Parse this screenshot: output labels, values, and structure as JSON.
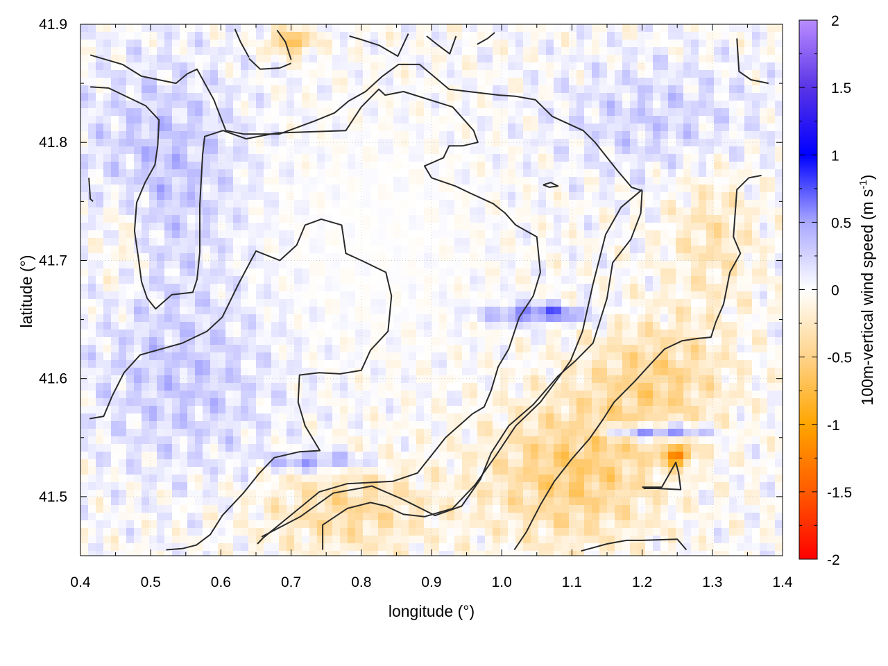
{
  "chart_data": {
    "type": "heatmap",
    "title": "",
    "xlabel": "longitude (°)",
    "ylabel": "latitude (°)",
    "colorbar_label": "100m-vertical wind speed (m s",
    "colorbar_label_sup": "-1",
    "colorbar_label_close": ")",
    "xlim": [
      0.4,
      1.4
    ],
    "ylim": [
      41.45,
      41.9
    ],
    "x_ticks": [
      "0.4",
      "0.5",
      "0.6",
      "0.7",
      "0.8",
      "0.9",
      "1.0",
      "1.1",
      "1.2",
      "1.3",
      "1.4"
    ],
    "x_tick_values": [
      0.4,
      0.5,
      0.6,
      0.7,
      0.8,
      0.9,
      1.0,
      1.1,
      1.2,
      1.3,
      1.4
    ],
    "y_ticks": [
      "41.5",
      "41.6",
      "41.7",
      "41.8",
      "41.9"
    ],
    "y_tick_values": [
      41.5,
      41.6,
      41.7,
      41.8,
      41.9
    ],
    "colorbar_ticks": [
      "-2",
      "-1.5",
      "-1",
      "-0.5",
      "0",
      "0.5",
      "1",
      "1.5",
      "2"
    ],
    "colorbar_tick_values": [
      -2,
      -1.5,
      -1,
      -0.5,
      0,
      0.5,
      1,
      1.5,
      2
    ],
    "color_range": [
      -2,
      2
    ],
    "colormap": [
      {
        "value": -2,
        "color": "#ff0000"
      },
      {
        "value": -1.5,
        "color": "#ff5a00"
      },
      {
        "value": -1,
        "color": "#ffa500"
      },
      {
        "value": -0.5,
        "color": "#ffd38a"
      },
      {
        "value": 0,
        "color": "#ffffff"
      },
      {
        "value": 0.5,
        "color": "#a8a8ff"
      },
      {
        "value": 1,
        "color": "#0000ff"
      },
      {
        "value": 1.5,
        "color": "#5a34e6"
      },
      {
        "value": 2,
        "color": "#b98cff"
      }
    ],
    "grid": true,
    "contour_color": "#2a2a2a",
    "contours": [
      [
        [
          0.414,
          41.874
        ],
        [
          0.46,
          41.866
        ],
        [
          0.487,
          41.856
        ],
        [
          0.536,
          41.85
        ],
        [
          0.552,
          41.858
        ],
        [
          0.566,
          41.862
        ],
        [
          0.59,
          41.836
        ],
        [
          0.607,
          41.81
        ],
        [
          0.633,
          41.807
        ],
        [
          0.683,
          41.807
        ],
        [
          0.733,
          41.818
        ],
        [
          0.762,
          41.825
        ],
        [
          0.782,
          41.835
        ],
        [
          0.806,
          41.843
        ],
        [
          0.83,
          41.856
        ],
        [
          0.853,
          41.866
        ],
        [
          0.883,
          41.866
        ],
        [
          0.925,
          41.845
        ],
        [
          0.996,
          41.84
        ],
        [
          1.02,
          41.839
        ],
        [
          1.048,
          41.836
        ],
        [
          1.072,
          41.822
        ],
        [
          1.116,
          41.81
        ],
        [
          1.133,
          41.8
        ],
        [
          1.165,
          41.776
        ],
        [
          1.185,
          41.762
        ],
        [
          1.2,
          41.759
        ],
        [
          1.198,
          41.74
        ],
        [
          1.184,
          41.718
        ],
        [
          1.158,
          41.698
        ],
        [
          1.15,
          41.668
        ],
        [
          1.14,
          41.649
        ],
        [
          1.13,
          41.63
        ],
        [
          1.105,
          41.615
        ],
        [
          1.08,
          41.602
        ],
        [
          1.045,
          41.578
        ],
        [
          1.01,
          41.56
        ],
        [
          0.985,
          41.537
        ],
        [
          0.97,
          41.515
        ],
        [
          0.943,
          41.492
        ],
        [
          0.905,
          41.484
        ],
        [
          0.858,
          41.498
        ],
        [
          0.815,
          41.509
        ],
        [
          0.76,
          41.503
        ],
        [
          0.713,
          41.483
        ],
        [
          0.658,
          41.466
        ]
      ],
      [
        [
          0.414,
          41.847
        ],
        [
          0.44,
          41.846
        ],
        [
          0.493,
          41.831
        ],
        [
          0.512,
          41.819
        ],
        [
          0.51,
          41.797
        ],
        [
          0.506,
          41.781
        ],
        [
          0.492,
          41.766
        ],
        [
          0.48,
          41.749
        ],
        [
          0.477,
          41.725
        ],
        [
          0.483,
          41.7
        ],
        [
          0.487,
          41.682
        ],
        [
          0.495,
          41.668
        ],
        [
          0.507,
          41.659
        ],
        [
          0.53,
          41.671
        ],
        [
          0.56,
          41.673
        ],
        [
          0.566,
          41.684
        ],
        [
          0.57,
          41.707
        ],
        [
          0.57,
          41.747
        ],
        [
          0.574,
          41.79
        ],
        [
          0.577,
          41.805
        ],
        [
          0.603,
          41.81
        ],
        [
          0.636,
          41.803
        ],
        [
          0.68,
          41.808
        ],
        [
          0.778,
          41.81
        ],
        [
          0.8,
          41.83
        ],
        [
          0.825,
          41.845
        ],
        [
          0.834,
          41.84
        ],
        [
          0.86,
          41.843
        ],
        [
          0.93,
          41.83
        ],
        [
          0.96,
          41.81
        ],
        [
          0.966,
          41.8
        ],
        [
          0.944,
          41.797
        ],
        [
          0.925,
          41.797
        ],
        [
          0.917,
          41.787
        ],
        [
          0.89,
          41.78
        ],
        [
          0.9,
          41.77
        ],
        [
          0.934,
          41.763
        ],
        [
          0.955,
          41.757
        ],
        [
          0.988,
          41.748
        ],
        [
          1.005,
          41.74
        ],
        [
          1.02,
          41.73
        ],
        [
          1.05,
          41.72
        ],
        [
          1.055,
          41.69
        ],
        [
          1.045,
          41.67
        ],
        [
          1.025,
          41.652
        ],
        [
          1.01,
          41.625
        ],
        [
          0.995,
          41.61
        ],
        [
          0.985,
          41.59
        ],
        [
          0.975,
          41.576
        ],
        [
          0.958,
          41.57
        ],
        [
          0.92,
          41.55
        ],
        [
          0.88,
          41.52
        ],
        [
          0.845,
          41.513
        ],
        [
          0.78,
          41.511
        ],
        [
          0.74,
          41.504
        ],
        [
          0.695,
          41.482
        ],
        [
          0.66,
          41.465
        ],
        [
          0.652,
          41.46
        ]
      ],
      [
        [
          0.413,
          41.566
        ],
        [
          0.433,
          41.568
        ],
        [
          0.445,
          41.585
        ],
        [
          0.462,
          41.605
        ],
        [
          0.485,
          41.62
        ],
        [
          0.545,
          41.63
        ],
        [
          0.58,
          41.64
        ],
        [
          0.602,
          41.652
        ],
        [
          0.625,
          41.68
        ],
        [
          0.65,
          41.708
        ],
        [
          0.684,
          41.7
        ],
        [
          0.708,
          41.713
        ],
        [
          0.72,
          41.73
        ],
        [
          0.743,
          41.735
        ],
        [
          0.772,
          41.73
        ],
        [
          0.778,
          41.706
        ],
        [
          0.8,
          41.7
        ],
        [
          0.835,
          41.69
        ],
        [
          0.843,
          41.67
        ],
        [
          0.838,
          41.64
        ],
        [
          0.813,
          41.624
        ],
        [
          0.8,
          41.607
        ],
        [
          0.77,
          41.604
        ],
        [
          0.74,
          41.605
        ],
        [
          0.712,
          41.603
        ],
        [
          0.71,
          41.58
        ],
        [
          0.72,
          41.56
        ],
        [
          0.741,
          41.539
        ],
        [
          0.712,
          41.538
        ],
        [
          0.676,
          41.533
        ],
        [
          0.655,
          41.52
        ],
        [
          0.632,
          41.503
        ],
        [
          0.602,
          41.484
        ],
        [
          0.585,
          41.468
        ],
        [
          0.565,
          41.459
        ],
        [
          0.545,
          41.456
        ],
        [
          0.522,
          41.455
        ]
      ],
      [
        [
          0.745,
          41.455
        ],
        [
          0.745,
          41.476
        ],
        [
          0.78,
          41.49
        ],
        [
          0.813,
          41.495
        ],
        [
          0.835,
          41.492
        ],
        [
          0.86,
          41.485
        ],
        [
          0.89,
          41.483
        ],
        [
          0.93,
          41.49
        ],
        [
          0.962,
          41.51
        ],
        [
          0.992,
          41.535
        ],
        [
          1.02,
          41.56
        ],
        [
          1.055,
          41.58
        ],
        [
          1.08,
          41.6
        ],
        [
          1.098,
          41.615
        ],
        [
          1.115,
          41.64
        ],
        [
          1.13,
          41.68
        ],
        [
          1.148,
          41.722
        ],
        [
          1.17,
          41.745
        ],
        [
          1.2,
          41.76
        ]
      ],
      [
        [
          1.113,
          41.454
        ],
        [
          1.15,
          41.46
        ],
        [
          1.168,
          41.462
        ],
        [
          1.178,
          41.463
        ],
        [
          1.2,
          41.463
        ],
        [
          1.25,
          41.464
        ],
        [
          1.263,
          41.455
        ]
      ],
      [
        [
          1.2,
          41.508
        ],
        [
          1.228,
          41.508
        ],
        [
          1.248,
          41.529
        ],
        [
          1.252,
          41.52
        ],
        [
          1.255,
          41.506
        ],
        [
          1.22,
          41.507
        ],
        [
          1.202,
          41.507
        ]
      ],
      [
        [
          1.018,
          41.455
        ],
        [
          1.035,
          41.47
        ],
        [
          1.055,
          41.493
        ],
        [
          1.075,
          41.513
        ],
        [
          1.1,
          41.532
        ],
        [
          1.125,
          41.549
        ],
        [
          1.145,
          41.566
        ],
        [
          1.16,
          41.58
        ],
        [
          1.19,
          41.598
        ],
        [
          1.21,
          41.611
        ],
        [
          1.232,
          41.625
        ],
        [
          1.257,
          41.632
        ],
        [
          1.28,
          41.634
        ],
        [
          1.298,
          41.635
        ],
        [
          1.305,
          41.648
        ],
        [
          1.316,
          41.663
        ],
        [
          1.325,
          41.69
        ],
        [
          1.34,
          41.706
        ],
        [
          1.33,
          41.72
        ],
        [
          1.335,
          41.76
        ],
        [
          1.352,
          41.77
        ],
        [
          1.37,
          41.772
        ]
      ],
      [
        [
          0.412,
          41.77
        ],
        [
          0.414,
          41.752
        ],
        [
          0.418,
          41.75
        ]
      ],
      [
        [
          0.64,
          41.871
        ],
        [
          0.656,
          41.862
        ],
        [
          0.684,
          41.863
        ],
        [
          0.7,
          41.867
        ]
      ],
      [
        [
          1.335,
          41.888
        ],
        [
          1.338,
          41.86
        ],
        [
          1.355,
          41.853
        ],
        [
          1.38,
          41.85
        ]
      ],
      [
        [
          0.62,
          41.896
        ],
        [
          0.628,
          41.885
        ],
        [
          0.64,
          41.872
        ]
      ],
      [
        [
          0.68,
          41.895
        ],
        [
          0.692,
          41.885
        ],
        [
          0.7,
          41.87
        ]
      ],
      [
        [
          0.783,
          41.89
        ],
        [
          0.8,
          41.887
        ],
        [
          0.826,
          41.882
        ],
        [
          0.852,
          41.873
        ],
        [
          0.867,
          41.892
        ]
      ],
      [
        [
          0.893,
          41.89
        ],
        [
          0.91,
          41.882
        ],
        [
          0.926,
          41.875
        ],
        [
          0.935,
          41.89
        ]
      ],
      [
        [
          0.965,
          41.883
        ],
        [
          0.98,
          41.888
        ],
        [
          0.99,
          41.893
        ]
      ],
      [
        [
          1.059,
          41.764
        ],
        [
          1.07,
          41.766
        ],
        [
          1.08,
          41.763
        ],
        [
          1.068,
          41.762
        ],
        [
          1.059,
          41.764
        ]
      ]
    ]
  }
}
